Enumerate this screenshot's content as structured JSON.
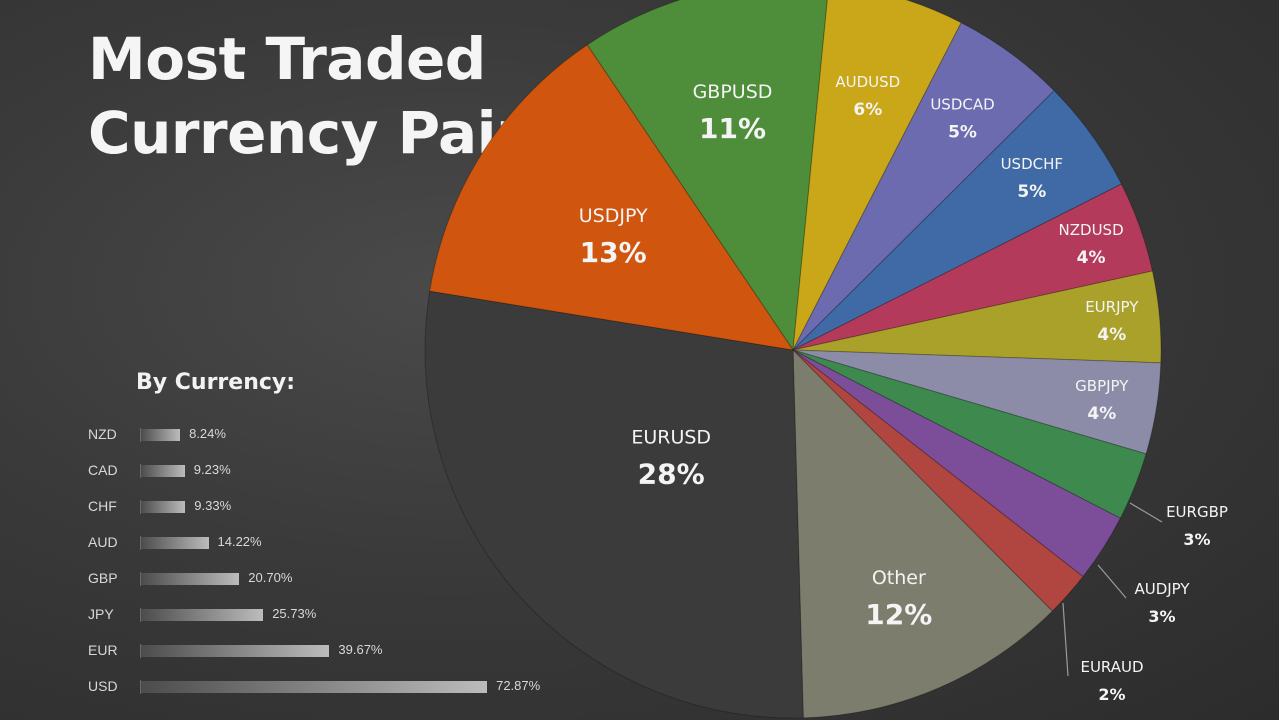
{
  "title_lines": [
    "Most Traded",
    "Currency Pairs"
  ],
  "colors": {
    "background": "#3a3a3a",
    "text": "#f2f2f2",
    "leader_line": "#9a9a9a"
  },
  "chart_data": [
    {
      "type": "pie",
      "start_angle_deg": -124,
      "direction": "clockwise",
      "slices": [
        {
          "label": "GBPUSD",
          "pct_text": "11%",
          "value": 11,
          "color": "#4e8d3a"
        },
        {
          "label": "AUDUSD",
          "pct_text": "6%",
          "value": 6,
          "color": "#c9a719"
        },
        {
          "label": "USDCAD",
          "pct_text": "5%",
          "value": 5,
          "color": "#6d6bb0"
        },
        {
          "label": "USDCHF",
          "pct_text": "5%",
          "value": 5,
          "color": "#3f6aa6"
        },
        {
          "label": "NZDUSD",
          "pct_text": "4%",
          "value": 4,
          "color": "#b33a5a"
        },
        {
          "label": "EURJPY",
          "pct_text": "4%",
          "value": 4,
          "color": "#aaa12b"
        },
        {
          "label": "GBPJPY",
          "pct_text": "4%",
          "value": 4,
          "color": "#8c8ca8"
        },
        {
          "label": "EURGBP",
          "pct_text": "3%",
          "value": 3,
          "color": "#3e8a4e"
        },
        {
          "label": "AUDJPY",
          "pct_text": "3%",
          "value": 3,
          "color": "#7c4d98"
        },
        {
          "label": "EURAUD",
          "pct_text": "2%",
          "value": 2,
          "color": "#b14640"
        },
        {
          "label": "Other",
          "pct_text": "12%",
          "value": 12,
          "color": "#7d7d6e"
        },
        {
          "label": "EURUSD",
          "pct_text": "28%",
          "value": 28,
          "color": "#3b3b3b"
        },
        {
          "label": "USDJPY",
          "pct_text": "13%",
          "value": 13,
          "color": "#d0560f"
        }
      ]
    },
    {
      "type": "bar",
      "orientation": "horizontal",
      "title": "By Currency:",
      "xlim": [
        0,
        80
      ],
      "categories": [
        "NZD",
        "CAD",
        "CHF",
        "AUD",
        "GBP",
        "JPY",
        "EUR",
        "USD"
      ],
      "values": [
        8.24,
        9.23,
        9.33,
        14.22,
        20.7,
        25.73,
        39.67,
        72.87
      ],
      "value_labels": [
        "8.24%",
        "9.23%",
        "9.33%",
        "14.22%",
        "20.70%",
        "25.73%",
        "39.67%",
        "72.87%"
      ]
    }
  ]
}
